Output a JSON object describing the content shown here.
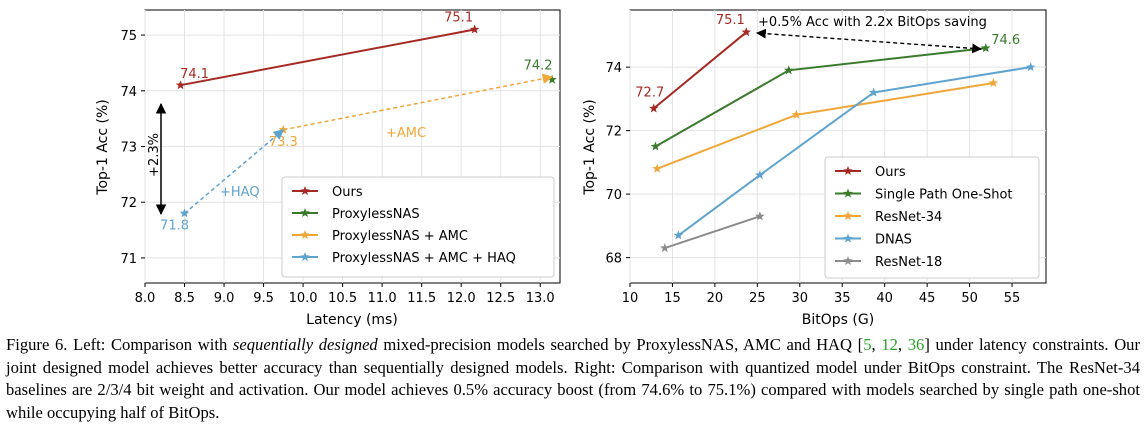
{
  "chart_data": [
    {
      "type": "line",
      "xlabel": "Latency (ms)",
      "ylabel": "Top-1 Acc (%)",
      "xlim": [
        8.0,
        13.25
      ],
      "ylim": [
        70.55,
        75.45
      ],
      "xticks": [
        "8.0",
        "8.5",
        "9.0",
        "9.5",
        "10.0",
        "10.5",
        "11.0",
        "11.5",
        "12.0",
        "12.5",
        "13.0"
      ],
      "yticks": [
        "71",
        "72",
        "73",
        "74",
        "75"
      ],
      "legend_position": "lower-right",
      "series": [
        {
          "name": "Ours",
          "color": "#a52a24",
          "dashed": false,
          "x": [
            8.45,
            12.17
          ],
          "y": [
            74.1,
            75.1
          ],
          "labels": [
            "74.1",
            "75.1"
          ]
        },
        {
          "name": "ProxylessNAS",
          "color": "#3a7a2c",
          "dashed": false,
          "x": [
            13.15
          ],
          "y": [
            74.2
          ],
          "labels": [
            "74.2"
          ]
        },
        {
          "name": "ProxylessNAS + AMC",
          "color": "#f0a73a",
          "dashed": true,
          "x": [
            9.75,
            13.15
          ],
          "y": [
            73.3,
            74.25
          ],
          "labels": [
            "73.3",
            ""
          ]
        },
        {
          "name": "ProxylessNAS + AMC + HAQ",
          "color": "#5fa3cf",
          "dashed": true,
          "x": [
            8.5,
            9.75
          ],
          "y": [
            71.8,
            73.3
          ],
          "labels": [
            "71.8",
            ""
          ]
        }
      ],
      "annotations": {
        "amc": "+AMC",
        "haq": "+HAQ",
        "delta": "+2.3%"
      }
    },
    {
      "type": "line",
      "xlabel": "BitOps (G)",
      "ylabel": "Top-1 Acc (%)",
      "xlim": [
        10,
        59
      ],
      "ylim": [
        67.2,
        75.8
      ],
      "xticks": [
        "10",
        "15",
        "20",
        "25",
        "30",
        "35",
        "40",
        "45",
        "50",
        "55"
      ],
      "yticks": [
        "68",
        "70",
        "72",
        "74"
      ],
      "legend_position": "lower-right",
      "series": [
        {
          "name": "Ours",
          "color": "#a52a24",
          "x": [
            12.8,
            23.7
          ],
          "y": [
            72.7,
            75.1
          ],
          "labels": [
            "72.7",
            "75.1"
          ]
        },
        {
          "name": "Single Path One-Shot",
          "color": "#3a7a2c",
          "x": [
            13.0,
            28.7,
            51.9
          ],
          "y": [
            71.5,
            73.9,
            74.6
          ],
          "labels": [
            "",
            "",
            "74.6"
          ]
        },
        {
          "name": "ResNet-34",
          "color": "#f0a73a",
          "x": [
            13.2,
            29.6,
            52.8
          ],
          "y": [
            70.8,
            72.5,
            73.5
          ],
          "labels": [
            "",
            "",
            ""
          ]
        },
        {
          "name": "DNAS",
          "color": "#5fa3cf",
          "x": [
            15.7,
            25.3,
            38.7,
            57.2
          ],
          "y": [
            68.7,
            70.6,
            73.2,
            74.0
          ],
          "labels": [
            "",
            "",
            "",
            ""
          ]
        },
        {
          "name": "ResNet-18",
          "color": "#8c8c8c",
          "x": [
            14.1,
            25.3
          ],
          "y": [
            68.3,
            69.3
          ],
          "labels": [
            "",
            ""
          ]
        }
      ],
      "annotations": {
        "saving": "+0.5% Acc with 2.2x BitOps saving"
      }
    }
  ],
  "caption": {
    "part1": "Figure 6. Left: Comparison with ",
    "emph": "sequentially designed",
    "part2": " mixed-precision models searched by ProxylessNAS, AMC and HAQ [",
    "ref1": "5",
    "sep1": ", ",
    "ref2": "12",
    "sep2": ", ",
    "ref3": "36",
    "part3": "] under latency constraints. Our joint designed model achieves better accuracy than sequentially designed models. Right: Comparison with quantized model under BitOps constraint. The ResNet-34 baselines are 2/3/4 bit weight and activation. Our model achieves 0.5% accuracy boost (from 74.6% to 75.1%) compared with models searched by single path one-shot while occupying half of BitOps."
  }
}
